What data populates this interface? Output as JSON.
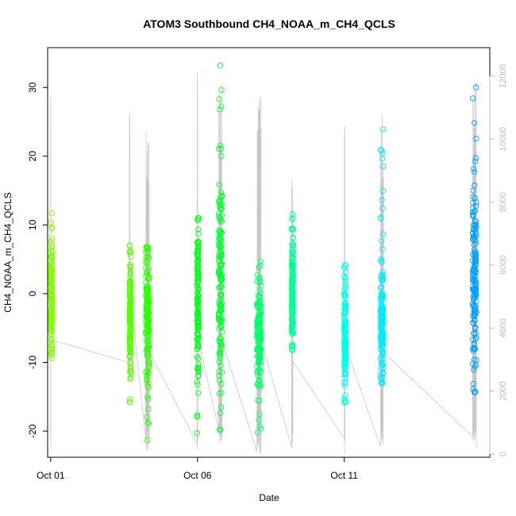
{
  "chart_data": {
    "type": "scatter",
    "title": "ATOM3 Southbound CH4_NOAA_m_CH4_QCLS",
    "xlabel": "Date",
    "ylabel": "CH4_NOAA_m_CH4_QCLS",
    "x_axis": {
      "type": "date",
      "range": [
        "2017-09-30T21:30",
        "2017-10-15T23:00"
      ],
      "ticks": [
        {
          "value": "2017-10-01",
          "label": "Oct 01"
        },
        {
          "value": "2017-10-06",
          "label": "Oct 06"
        },
        {
          "value": "2017-10-11",
          "label": "Oct 11"
        }
      ]
    },
    "y_axis": {
      "range": [
        -23.8,
        35.8
      ],
      "ticks": [
        -20,
        -10,
        0,
        10,
        20,
        30
      ]
    },
    "y2_axis": {
      "description": "secondary altitude-like axis (gray line)",
      "range": [
        -100,
        12900
      ],
      "ticks": [
        0,
        2000,
        4000,
        6000,
        8000,
        10000,
        12000
      ],
      "color": "#bdbdbd"
    },
    "grid": false,
    "series": [
      {
        "kind": "points",
        "color_scale": "rainbow by date (yellow-green → green → cyan → blue)",
        "flights": [
          {
            "date": "2017-10-01",
            "hours": [
              0.0,
              0.16
            ],
            "y_min": -9.4,
            "y_max": 11.7,
            "mean": -0.5,
            "sd": 4.0,
            "color": "#80ff00"
          },
          {
            "date": "2017-10-03",
            "hours": [
              16.4,
              16.85
            ],
            "y_min": -15.8,
            "y_max": 7.0,
            "mean": -3.0,
            "sd": 4.0,
            "color": "#55ff00"
          },
          {
            "date": "2017-10-04",
            "hours": [
              5.8,
              8.6
            ],
            "y_min": -21.3,
            "y_max": 6.8,
            "mean": -3.5,
            "sd": 4.5,
            "color": "#2bff00"
          },
          {
            "date": "2017-10-05",
            "hours": [
              23.7,
              24.0
            ],
            "y_min": -20.3,
            "y_max": 11.0,
            "mean": -2.0,
            "sd": 6.0,
            "color": "#00ff15"
          },
          {
            "date": "2017-10-06",
            "hours": [
              17.4,
              20.0
            ],
            "y_min": -19.8,
            "y_max": 33.2,
            "mean": 2.0,
            "sd": 8.0,
            "color": "#00ff2b"
          },
          {
            "date": "2017-10-08",
            "hours": [
              0.7,
              4.0
            ],
            "y_min": -20.2,
            "y_max": 4.7,
            "mean": -5.5,
            "sd": 4.5,
            "color": "#00ff6a"
          },
          {
            "date": "2017-10-09",
            "hours": [
              5.0,
              6.0
            ],
            "y_min": -8.2,
            "y_max": 11.6,
            "mean": 0.0,
            "sd": 4.0,
            "color": "#00ff95"
          },
          {
            "date": "2017-10-11",
            "hours": [
              0.0,
              0.5
            ],
            "y_min": -15.8,
            "y_max": 4.2,
            "mean": -6.5,
            "sd": 4.5,
            "color": "#00ffea"
          },
          {
            "date": "2017-10-12",
            "hours": [
              5.7,
              8.0
            ],
            "y_min": -13.0,
            "y_max": 23.9,
            "mean": -4.0,
            "sd": 4.0,
            "color": "#00eaff"
          },
          {
            "date": "2017-10-15",
            "hours": [
              9.0,
              12.0
            ],
            "y_min": -14.3,
            "y_max": 30.0,
            "mean": 2.5,
            "sd": 6.0,
            "color": "#009fff"
          }
        ]
      },
      {
        "kind": "line",
        "axis": "y2",
        "color": "#c8c8c8",
        "description": "flight altitude trace (vertical profiles connected between flights)",
        "segments": [
          {
            "start": "2017-10-01T00:00",
            "end": "2017-10-01T00:10",
            "min": 0,
            "max": 12100
          },
          {
            "start": "2017-10-03T16:20",
            "end": "2017-10-03T16:50",
            "min": 2200,
            "max": 12600
          },
          {
            "start": "2017-10-04T05:40",
            "end": "2017-10-04T08:40",
            "min": 0,
            "max": 10800
          },
          {
            "start": "2017-10-05T23:40",
            "end": "2017-10-06T00:10",
            "min": 0,
            "max": 12500
          },
          {
            "start": "2017-10-06T17:20",
            "end": "2017-10-06T20:00",
            "min": 0,
            "max": 12000
          },
          {
            "start": "2017-10-08T00:40",
            "end": "2017-10-08T04:00",
            "min": 0,
            "max": 12000
          },
          {
            "start": "2017-10-09T05:00",
            "end": "2017-10-09T06:00",
            "min": 0,
            "max": 9800
          },
          {
            "start": "2017-10-11T00:00",
            "end": "2017-10-11T00:30",
            "min": 0,
            "max": 11700
          },
          {
            "start": "2017-10-12T05:40",
            "end": "2017-10-12T08:00",
            "min": 0,
            "max": 10800
          },
          {
            "start": "2017-10-15T09:00",
            "end": "2017-10-15T12:00",
            "min": 0,
            "max": 12000
          }
        ]
      }
    ]
  }
}
